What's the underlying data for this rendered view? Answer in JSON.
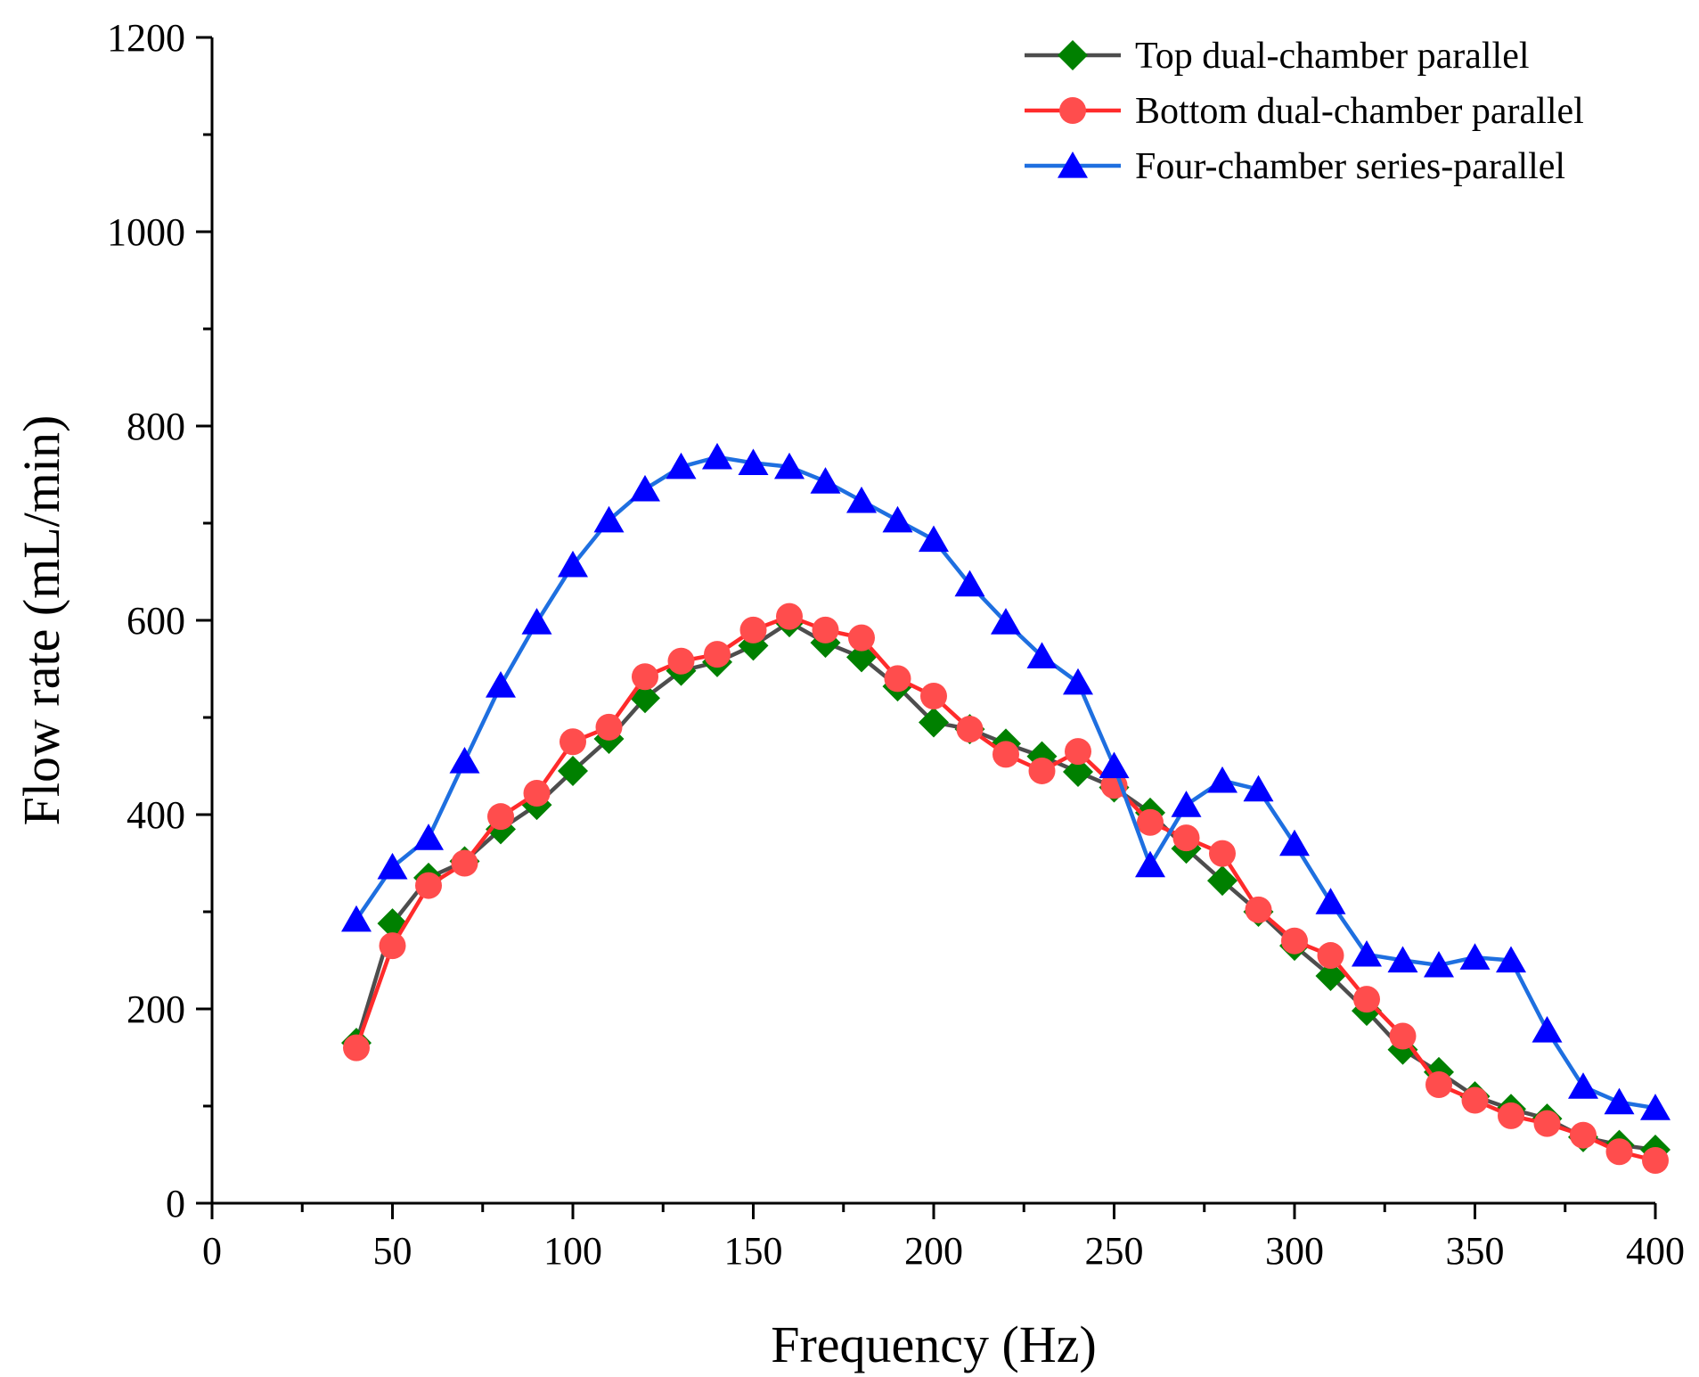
{
  "chart_data": {
    "type": "line",
    "title": "",
    "xlabel": "Frequency (Hz)",
    "ylabel": "Flow rate (mL/min)",
    "xlim": [
      0,
      400
    ],
    "ylim": [
      0,
      1200
    ],
    "xticks": [
      0,
      50,
      100,
      150,
      200,
      250,
      300,
      350,
      400
    ],
    "yticks": [
      0,
      200,
      400,
      600,
      800,
      1000,
      1200
    ],
    "grid": false,
    "legend_position": "top-right",
    "x": [
      40,
      50,
      60,
      70,
      80,
      90,
      100,
      110,
      120,
      130,
      140,
      150,
      160,
      170,
      180,
      190,
      200,
      210,
      220,
      230,
      240,
      250,
      260,
      270,
      280,
      290,
      300,
      310,
      320,
      330,
      340,
      350,
      360,
      370,
      380,
      390,
      400
    ],
    "series": [
      {
        "name": "Top dual-chamber parallel",
        "marker": "diamond",
        "line_color": "#4d4d4d",
        "marker_color": "#008000",
        "values": [
          165,
          288,
          335,
          352,
          385,
          410,
          445,
          478,
          520,
          548,
          557,
          574,
          598,
          577,
          562,
          532,
          495,
          488,
          473,
          460,
          444,
          428,
          402,
          365,
          332,
          300,
          265,
          234,
          198,
          158,
          135,
          110,
          97,
          87,
          68,
          60,
          55
        ]
      },
      {
        "name": "Bottom dual-chamber parallel",
        "marker": "circle",
        "line_color": "#ff2b2b",
        "marker_color": "#ff4d4d",
        "values": [
          160,
          265,
          327,
          350,
          398,
          422,
          475,
          490,
          542,
          558,
          565,
          590,
          604,
          590,
          582,
          540,
          522,
          488,
          462,
          445,
          465,
          430,
          392,
          376,
          360,
          302,
          270,
          255,
          210,
          172,
          122,
          106,
          90,
          82,
          70,
          53,
          44
        ]
      },
      {
        "name": "Four-chamber series-parallel",
        "marker": "triangle",
        "line_color": "#1e6fe0",
        "marker_color": "#0000ff",
        "values": [
          292,
          346,
          376,
          455,
          533,
          598,
          657,
          703,
          735,
          758,
          768,
          762,
          758,
          743,
          723,
          703,
          683,
          637,
          598,
          563,
          536,
          450,
          348,
          410,
          435,
          426,
          370,
          310,
          256,
          250,
          245,
          253,
          250,
          178,
          120,
          104,
          98
        ]
      }
    ]
  }
}
